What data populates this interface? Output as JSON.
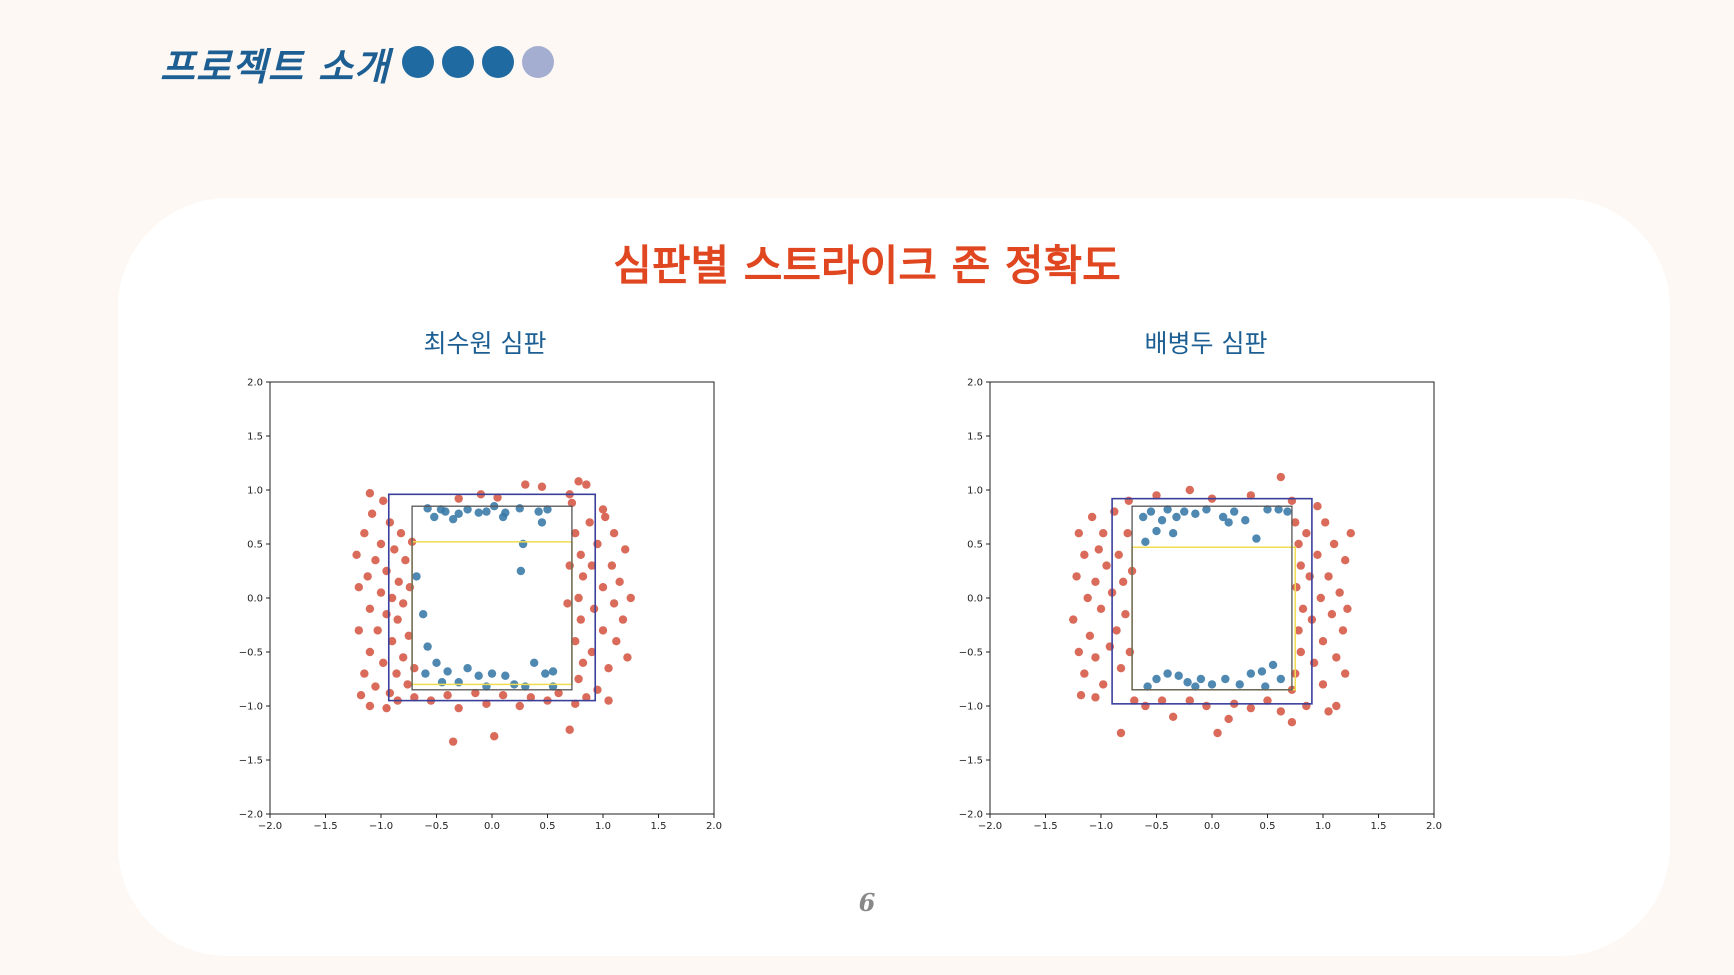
{
  "header": {
    "title": "프로젝트 소개",
    "progress_dots": [
      "#1f6aa1",
      "#1f6aa1",
      "#1f6aa1",
      "#a3aed0"
    ]
  },
  "slide": {
    "title": "심판별 스트라이크 존 정확도",
    "page_number": "6"
  },
  "colors": {
    "ball": "#d24a36",
    "strike": "#3777a6",
    "zone_outer": "#3a3f99",
    "zone_inner": "#555555",
    "zone_rule": "#f0dc50",
    "title": "#e0461f",
    "subtitle": "#1d5f92"
  },
  "chart_data": [
    {
      "type": "scatter",
      "title": "최수원 심판",
      "xlim": [
        -2.0,
        2.0
      ],
      "ylim": [
        -2.0,
        2.0
      ],
      "x_ticks": [
        "−2.0",
        "−1.5",
        "−1.0",
        "−0.5",
        "0.0",
        "0.5",
        "1.0",
        "1.5",
        "2.0"
      ],
      "y_ticks": [
        "−2.0",
        "−1.5",
        "−1.0",
        "−0.5",
        "0.0",
        "0.5",
        "1.0",
        "1.5",
        "2.0"
      ],
      "zones": {
        "outer": [
          -0.93,
          0.93,
          -0.95,
          0.96
        ],
        "inner": [
          -0.72,
          0.72,
          -0.85,
          0.85
        ],
        "rule": [
          -0.72,
          0.72,
          -0.8,
          0.52
        ]
      },
      "strike_points": [
        [
          -0.58,
          0.83
        ],
        [
          -0.46,
          0.82
        ],
        [
          -0.42,
          0.8
        ],
        [
          -0.3,
          0.78
        ],
        [
          -0.22,
          0.82
        ],
        [
          -0.12,
          0.79
        ],
        [
          -0.05,
          0.8
        ],
        [
          0.02,
          0.85
        ],
        [
          0.12,
          0.79
        ],
        [
          0.25,
          0.83
        ],
        [
          0.42,
          0.8
        ],
        [
          0.45,
          0.7
        ],
        [
          0.5,
          0.82
        ],
        [
          -0.52,
          0.75
        ],
        [
          -0.35,
          0.73
        ],
        [
          0.1,
          0.75
        ],
        [
          0.28,
          0.5
        ],
        [
          0.26,
          0.25
        ],
        [
          -0.68,
          0.2
        ],
        [
          -0.62,
          -0.15
        ],
        [
          -0.58,
          -0.45
        ],
        [
          -0.5,
          -0.6
        ],
        [
          -0.4,
          -0.68
        ],
        [
          -0.3,
          -0.78
        ],
        [
          -0.22,
          -0.65
        ],
        [
          -0.12,
          -0.72
        ],
        [
          0.0,
          -0.7
        ],
        [
          0.12,
          -0.72
        ],
        [
          0.2,
          -0.8
        ],
        [
          0.38,
          -0.6
        ],
        [
          0.48,
          -0.7
        ],
        [
          0.55,
          -0.68
        ],
        [
          -0.6,
          -0.7
        ],
        [
          -0.45,
          -0.78
        ],
        [
          0.3,
          -0.82
        ],
        [
          -0.05,
          -0.82
        ],
        [
          0.55,
          -0.82
        ]
      ],
      "ball_points": [
        [
          -1.22,
          0.4
        ],
        [
          -1.2,
          0.1
        ],
        [
          -1.2,
          -0.3
        ],
        [
          -1.15,
          0.6
        ],
        [
          -1.15,
          -0.7
        ],
        [
          -1.12,
          0.2
        ],
        [
          -1.1,
          -0.1
        ],
        [
          -1.1,
          -0.5
        ],
        [
          -1.08,
          0.78
        ],
        [
          -1.05,
          0.35
        ],
        [
          -1.05,
          -0.82
        ],
        [
          -1.03,
          -0.3
        ],
        [
          -1.0,
          0.05
        ],
        [
          -1.0,
          0.5
        ],
        [
          -0.98,
          -0.6
        ],
        [
          -0.98,
          0.9
        ],
        [
          -0.95,
          -0.15
        ],
        [
          -0.95,
          0.25
        ],
        [
          -0.92,
          -0.88
        ],
        [
          -0.92,
          0.7
        ],
        [
          -0.9,
          -0.4
        ],
        [
          -0.9,
          0.0
        ],
        [
          -0.88,
          0.45
        ],
        [
          -0.86,
          -0.7
        ],
        [
          -0.85,
          -0.2
        ],
        [
          -0.84,
          0.15
        ],
        [
          -0.82,
          0.6
        ],
        [
          -0.8,
          -0.55
        ],
        [
          -0.8,
          -0.05
        ],
        [
          -0.78,
          0.35
        ],
        [
          -0.76,
          -0.8
        ],
        [
          -0.75,
          -0.35
        ],
        [
          -0.74,
          0.1
        ],
        [
          -0.72,
          0.52
        ],
        [
          -0.7,
          -0.65
        ],
        [
          -1.18,
          -0.9
        ],
        [
          -1.1,
          -1.0
        ],
        [
          -0.95,
          -1.02
        ],
        [
          -0.85,
          -0.95
        ],
        [
          -0.7,
          -0.92
        ],
        [
          -0.55,
          -0.95
        ],
        [
          -0.4,
          -0.9
        ],
        [
          -0.3,
          -1.02
        ],
        [
          -0.15,
          -0.88
        ],
        [
          -0.05,
          -0.98
        ],
        [
          0.1,
          -0.9
        ],
        [
          0.25,
          -1.0
        ],
        [
          0.35,
          -0.92
        ],
        [
          0.5,
          -0.95
        ],
        [
          0.6,
          -0.88
        ],
        [
          0.75,
          -0.98
        ],
        [
          0.85,
          -0.92
        ],
        [
          -0.35,
          -1.33
        ],
        [
          0.02,
          -1.28
        ],
        [
          0.7,
          -1.22
        ],
        [
          -1.1,
          0.97
        ],
        [
          -0.3,
          0.92
        ],
        [
          -0.1,
          0.96
        ],
        [
          0.05,
          0.93
        ],
        [
          0.3,
          1.05
        ],
        [
          0.45,
          1.03
        ],
        [
          0.7,
          0.96
        ],
        [
          0.78,
          1.08
        ],
        [
          0.85,
          1.05
        ],
        [
          0.72,
          0.88
        ],
        [
          0.75,
          0.6
        ],
        [
          0.8,
          0.4
        ],
        [
          0.82,
          0.2
        ],
        [
          0.78,
          0.0
        ],
        [
          0.8,
          -0.2
        ],
        [
          0.75,
          -0.4
        ],
        [
          0.82,
          -0.6
        ],
        [
          0.78,
          -0.75
        ],
        [
          0.88,
          0.7
        ],
        [
          0.9,
          0.3
        ],
        [
          0.92,
          -0.1
        ],
        [
          0.9,
          -0.5
        ],
        [
          0.95,
          0.5
        ],
        [
          1.0,
          0.1
        ],
        [
          1.0,
          -0.3
        ],
        [
          1.02,
          0.75
        ],
        [
          1.05,
          -0.65
        ],
        [
          1.08,
          0.3
        ],
        [
          1.1,
          -0.05
        ],
        [
          1.1,
          0.6
        ],
        [
          1.12,
          -0.4
        ],
        [
          1.15,
          0.15
        ],
        [
          1.18,
          -0.2
        ],
        [
          1.2,
          0.45
        ],
        [
          1.22,
          -0.55
        ],
        [
          1.25,
          0.0
        ],
        [
          1.0,
          0.82
        ],
        [
          0.95,
          -0.85
        ],
        [
          1.05,
          -0.95
        ],
        [
          0.68,
          -0.05
        ],
        [
          0.7,
          0.3
        ]
      ]
    },
    {
      "type": "scatter",
      "title": "배병두 심판",
      "xlim": [
        -2.0,
        2.0
      ],
      "ylim": [
        -2.0,
        2.0
      ],
      "x_ticks": [
        "−2.0",
        "−1.5",
        "−1.0",
        "−0.5",
        "0.0",
        "0.5",
        "1.0",
        "1.5",
        "2.0"
      ],
      "y_ticks": [
        "−2.0",
        "−1.5",
        "−1.0",
        "−0.5",
        "0.0",
        "0.5",
        "1.0",
        "1.5",
        "2.0"
      ],
      "zones": {
        "outer": [
          -0.9,
          0.9,
          -0.98,
          0.92
        ],
        "inner": [
          -0.72,
          0.72,
          -0.85,
          0.85
        ],
        "rule": [
          -0.72,
          0.75,
          -0.85,
          0.47
        ]
      },
      "strike_points": [
        [
          -0.62,
          0.75
        ],
        [
          -0.55,
          0.8
        ],
        [
          -0.5,
          0.62
        ],
        [
          -0.45,
          0.72
        ],
        [
          -0.4,
          0.82
        ],
        [
          -0.32,
          0.75
        ],
        [
          -0.25,
          0.8
        ],
        [
          -0.15,
          0.78
        ],
        [
          -0.05,
          0.82
        ],
        [
          0.1,
          0.75
        ],
        [
          0.2,
          0.8
        ],
        [
          0.3,
          0.72
        ],
        [
          0.4,
          0.55
        ],
        [
          0.5,
          0.82
        ],
        [
          0.6,
          0.82
        ],
        [
          0.68,
          0.8
        ],
        [
          -0.35,
          0.6
        ],
        [
          0.15,
          0.7
        ],
        [
          -0.6,
          0.52
        ],
        [
          -0.5,
          -0.75
        ],
        [
          -0.4,
          -0.7
        ],
        [
          -0.3,
          -0.72
        ],
        [
          -0.22,
          -0.78
        ],
        [
          -0.1,
          -0.75
        ],
        [
          0.0,
          -0.8
        ],
        [
          0.12,
          -0.75
        ],
        [
          0.25,
          -0.8
        ],
        [
          0.35,
          -0.7
        ],
        [
          0.45,
          -0.68
        ],
        [
          0.55,
          -0.62
        ],
        [
          0.62,
          -0.75
        ],
        [
          -0.58,
          -0.82
        ],
        [
          -0.15,
          -0.82
        ],
        [
          0.48,
          -0.82
        ]
      ],
      "ball_points": [
        [
          -1.2,
          0.6
        ],
        [
          -1.22,
          0.2
        ],
        [
          -1.25,
          -0.2
        ],
        [
          -1.2,
          -0.5
        ],
        [
          -1.15,
          0.4
        ],
        [
          -1.15,
          -0.7
        ],
        [
          -1.12,
          0.0
        ],
        [
          -1.1,
          -0.35
        ],
        [
          -1.08,
          0.75
        ],
        [
          -1.05,
          0.15
        ],
        [
          -1.05,
          -0.55
        ],
        [
          -1.02,
          0.45
        ],
        [
          -1.0,
          -0.1
        ],
        [
          -0.98,
          -0.8
        ],
        [
          -0.98,
          0.6
        ],
        [
          -0.95,
          0.3
        ],
        [
          -0.92,
          -0.45
        ],
        [
          -0.9,
          0.05
        ],
        [
          -0.88,
          0.8
        ],
        [
          -0.86,
          -0.3
        ],
        [
          -0.84,
          0.4
        ],
        [
          -0.82,
          -0.65
        ],
        [
          -0.8,
          0.15
        ],
        [
          -0.78,
          -0.15
        ],
        [
          -0.76,
          0.6
        ],
        [
          -0.74,
          -0.5
        ],
        [
          -0.72,
          0.25
        ],
        [
          -1.18,
          -0.9
        ],
        [
          -1.05,
          -0.92
        ],
        [
          -0.82,
          -1.25
        ],
        [
          -0.7,
          -0.95
        ],
        [
          -0.6,
          -1.0
        ],
        [
          -0.45,
          -0.95
        ],
        [
          -0.35,
          -1.1
        ],
        [
          -0.2,
          -0.95
        ],
        [
          -0.05,
          -1.0
        ],
        [
          0.05,
          -1.25
        ],
        [
          0.15,
          -1.12
        ],
        [
          0.2,
          -0.98
        ],
        [
          0.35,
          -1.02
        ],
        [
          0.5,
          -0.95
        ],
        [
          0.62,
          -1.05
        ],
        [
          0.72,
          -1.15
        ],
        [
          0.85,
          -1.0
        ],
        [
          1.05,
          -1.05
        ],
        [
          1.12,
          -1.0
        ],
        [
          -0.75,
          0.9
        ],
        [
          -0.5,
          0.95
        ],
        [
          -0.2,
          1.0
        ],
        [
          0.0,
          0.92
        ],
        [
          0.35,
          0.95
        ],
        [
          0.62,
          1.12
        ],
        [
          0.72,
          0.9
        ],
        [
          0.75,
          0.7
        ],
        [
          0.78,
          0.5
        ],
        [
          0.8,
          0.3
        ],
        [
          0.76,
          0.1
        ],
        [
          0.82,
          -0.1
        ],
        [
          0.78,
          -0.3
        ],
        [
          0.8,
          -0.5
        ],
        [
          0.75,
          -0.7
        ],
        [
          0.85,
          0.6
        ],
        [
          0.88,
          0.2
        ],
        [
          0.9,
          -0.2
        ],
        [
          0.92,
          -0.6
        ],
        [
          0.95,
          0.4
        ],
        [
          0.98,
          0.0
        ],
        [
          1.0,
          -0.4
        ],
        [
          1.02,
          0.7
        ],
        [
          1.05,
          0.2
        ],
        [
          1.08,
          -0.15
        ],
        [
          1.1,
          0.5
        ],
        [
          1.12,
          -0.55
        ],
        [
          1.15,
          0.05
        ],
        [
          1.18,
          -0.3
        ],
        [
          1.2,
          0.35
        ],
        [
          1.22,
          -0.1
        ],
        [
          1.25,
          0.6
        ],
        [
          1.0,
          -0.8
        ],
        [
          0.95,
          0.85
        ],
        [
          1.2,
          -0.7
        ],
        [
          0.72,
          -0.85
        ]
      ]
    }
  ]
}
